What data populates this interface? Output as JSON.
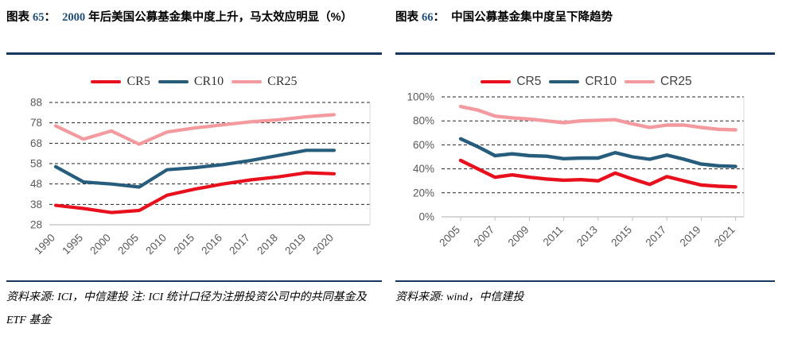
{
  "header": {
    "left_title": {
      "segments": [
        {
          "t": "图表 "
        },
        {
          "t": "65",
          "n": true
        },
        {
          "t": "：  "
        },
        {
          "t": "2000",
          "n": true
        },
        {
          "t": " 年后美国公募基金集中度上升，马太效应明显（%）"
        }
      ]
    },
    "right_title": {
      "segments": [
        {
          "t": "图表 "
        },
        {
          "t": "66",
          "n": true
        },
        {
          "t": "：  中国公募基金集中度呈下降趋势"
        }
      ]
    }
  },
  "footer": {
    "left_source": "资料来源: ICI，中信建投  注: ICI 统计口径为注册投资公司中的共同基金及 ETF 基金",
    "right_source": "资料来源: wind，中信建投"
  },
  "colors": {
    "accent_navy": "#17375E",
    "number_blue": "#1F4E79",
    "cr5_red": "#E8101C",
    "cr10_blue": "#275D7C",
    "cr25_pink": "#F49A9E",
    "grid": "#262626",
    "baseline": "#C8C8C8",
    "axis_text": "#595959"
  },
  "chart_data": [
    {
      "id": "us",
      "type": "line",
      "title": "2000 年后美国公募基金集中度上升，马太效应明显（%）",
      "legend_position": "top",
      "grid": "dashed-horizontal",
      "categories": [
        "1990",
        "1995",
        "2000",
        "2005",
        "2010",
        "2015",
        "2016",
        "2017",
        "2018",
        "2019",
        "2020"
      ],
      "series": [
        {
          "name": "CR5",
          "color": "#E8101C",
          "values": [
            37.5,
            36,
            34,
            35,
            42.5,
            45.5,
            48,
            50,
            51.5,
            53.5,
            53
          ]
        },
        {
          "name": "CR10",
          "color": "#275D7C",
          "values": [
            56.5,
            49,
            48,
            46.5,
            55,
            56,
            57.5,
            59.5,
            62,
            64.5,
            64.5
          ]
        },
        {
          "name": "CR25",
          "color": "#F49A9E",
          "values": [
            76.5,
            70,
            74,
            67.5,
            73.5,
            75.5,
            77,
            78.5,
            79.5,
            81,
            82
          ]
        }
      ],
      "ylim": [
        28,
        88
      ],
      "yticks": [
        28,
        38,
        48,
        58,
        68,
        78,
        88
      ],
      "y_format": "number",
      "xlabel": "",
      "ylabel": ""
    },
    {
      "id": "china",
      "type": "line",
      "title": "中国公募基金集中度呈下降趋势",
      "legend_position": "top",
      "grid": "dashed-horizontal",
      "categories": [
        "2005",
        "2006",
        "2007",
        "2008",
        "2009",
        "2010",
        "2011",
        "2012",
        "2013",
        "2014",
        "2015",
        "2016",
        "2017",
        "2018",
        "2019",
        "2020",
        "2021"
      ],
      "x_label_every": 2,
      "series": [
        {
          "name": "CR5",
          "color": "#E8101C",
          "values": [
            47,
            40,
            33,
            35,
            33,
            31.5,
            30.5,
            31,
            30,
            36.5,
            31.5,
            27,
            33.5,
            30,
            26.5,
            25.5,
            25
          ]
        },
        {
          "name": "CR10",
          "color": "#275D7C",
          "values": [
            65,
            58.5,
            51,
            52.5,
            51,
            50.5,
            48.5,
            49,
            49,
            53.5,
            50,
            48,
            51.5,
            48,
            44,
            42.5,
            42
          ]
        },
        {
          "name": "CR25",
          "color": "#F49A9E",
          "values": [
            92,
            89,
            84,
            82.5,
            81.5,
            80,
            78.5,
            80,
            80.5,
            81,
            77.5,
            74.5,
            76.5,
            76.5,
            74.5,
            73,
            72.5
          ]
        }
      ],
      "ylim": [
        0,
        100
      ],
      "yticks": [
        0,
        20,
        40,
        60,
        80,
        100
      ],
      "y_format": "percent",
      "xlabel": "",
      "ylabel": ""
    }
  ]
}
